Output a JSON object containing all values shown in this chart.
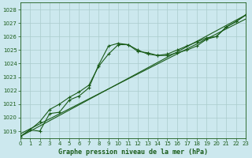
{
  "title": "Graphe pression niveau de la mer (hPa)",
  "bg_color": "#cce8ee",
  "grid_color": "#aacccc",
  "line_color": "#1a5c1a",
  "marker_color": "#1a5c1a",
  "x_min": 0,
  "x_max": 23,
  "y_min": 1018.5,
  "y_max": 1028.5,
  "y_ticks": [
    1019,
    1020,
    1021,
    1022,
    1023,
    1024,
    1025,
    1026,
    1027,
    1028
  ],
  "x_ticks": [
    0,
    1,
    2,
    3,
    4,
    5,
    6,
    7,
    8,
    9,
    10,
    11,
    12,
    13,
    14,
    15,
    16,
    17,
    18,
    19,
    20,
    21,
    22,
    23
  ],
  "series1_x": [
    0,
    1,
    2,
    3,
    4,
    5,
    6,
    7,
    8,
    9,
    10,
    11,
    12,
    13,
    14,
    15,
    16,
    17,
    18,
    19,
    20,
    21,
    22,
    23
  ],
  "series1_y": [
    1018.6,
    1019.1,
    1019.0,
    1020.3,
    1020.4,
    1021.3,
    1021.6,
    1022.2,
    1023.9,
    1025.3,
    1025.5,
    1025.4,
    1025.0,
    1024.7,
    1024.6,
    1024.6,
    1024.8,
    1025.0,
    1025.3,
    1025.8,
    1026.0,
    1026.7,
    1027.1,
    1027.6
  ],
  "series2_x": [
    0,
    1,
    2,
    3,
    4,
    5,
    6,
    7,
    8,
    9,
    10,
    11,
    12,
    13,
    14,
    15,
    16,
    17,
    18,
    19,
    20,
    21,
    22,
    23
  ],
  "series2_y": [
    1018.6,
    1019.1,
    1019.7,
    1020.6,
    1021.0,
    1021.5,
    1021.9,
    1022.4,
    1023.8,
    1024.7,
    1025.4,
    1025.4,
    1024.9,
    1024.8,
    1024.6,
    1024.7,
    1025.0,
    1025.3,
    1025.6,
    1025.9,
    1026.0,
    1026.7,
    1027.1,
    1027.6
  ],
  "series3_x": [
    0,
    23
  ],
  "series3_y": [
    1018.6,
    1027.6
  ],
  "series4_x": [
    0,
    23
  ],
  "series4_y": [
    1018.8,
    1027.3
  ],
  "title_fontsize": 6.0,
  "tick_fontsize": 5.0
}
